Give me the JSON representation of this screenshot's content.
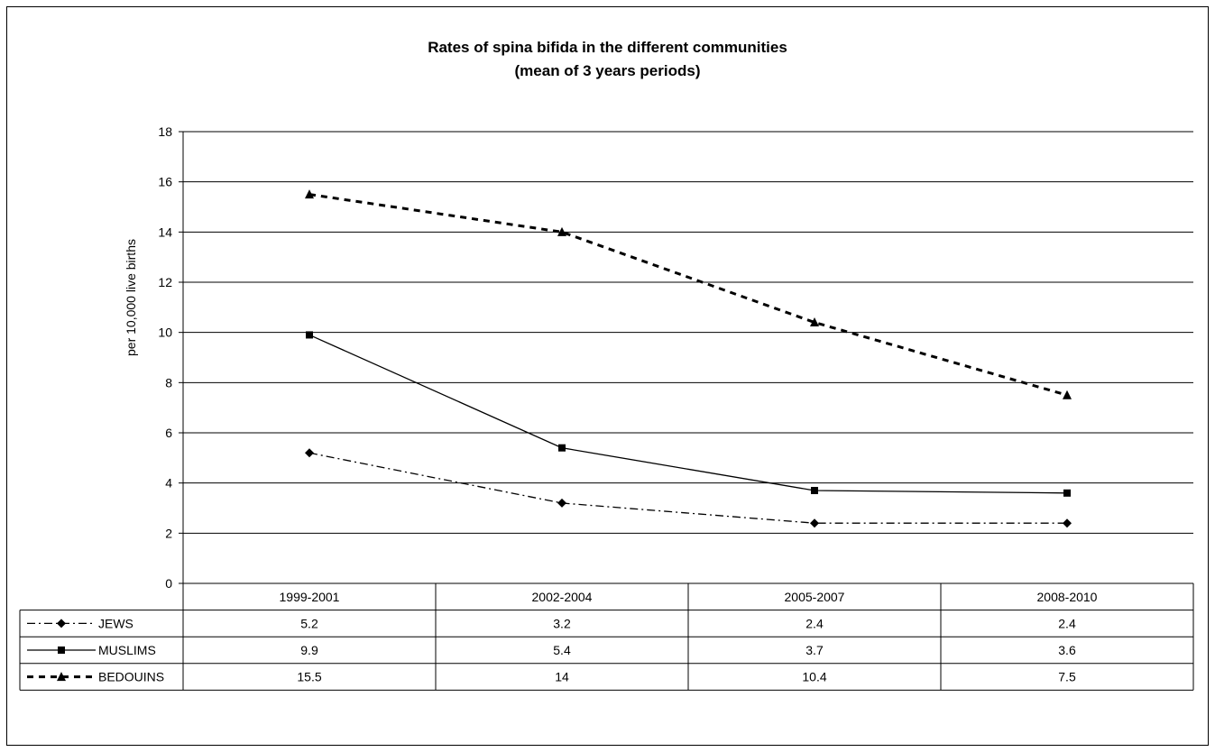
{
  "chart_data": {
    "type": "line",
    "title": "Rates of spina bifida in the different communities",
    "subtitle": "(mean of 3 years periods)",
    "ylabel": "per 10,000 live births",
    "xlabel": "",
    "ylim": [
      0,
      18
    ],
    "yticks": [
      "0",
      "2",
      "4",
      "6",
      "8",
      "10",
      "12",
      "14",
      "16",
      "18"
    ],
    "categories": [
      "1999-2001",
      "2002-2004",
      "2005-2007",
      "2008-2010"
    ],
    "grid": "horizontal",
    "legend": "data-table-below",
    "series": [
      {
        "name": "JEWS",
        "marker": "diamond",
        "dash": "dash-dot",
        "values": [
          5.2,
          3.2,
          2.4,
          2.4
        ],
        "labels": [
          "5.2",
          "3.2",
          "2.4",
          "2.4"
        ]
      },
      {
        "name": "MUSLIMS",
        "marker": "square",
        "dash": "solid",
        "values": [
          9.9,
          5.4,
          3.7,
          3.6
        ],
        "labels": [
          "9.9",
          "5.4",
          "3.7",
          "3.6"
        ]
      },
      {
        "name": "BEDOUINS",
        "marker": "triangle",
        "dash": "dashed",
        "values": [
          15.5,
          14,
          10.4,
          7.5
        ],
        "labels": [
          "15.5",
          "14",
          "10.4",
          "7.5"
        ]
      }
    ]
  }
}
